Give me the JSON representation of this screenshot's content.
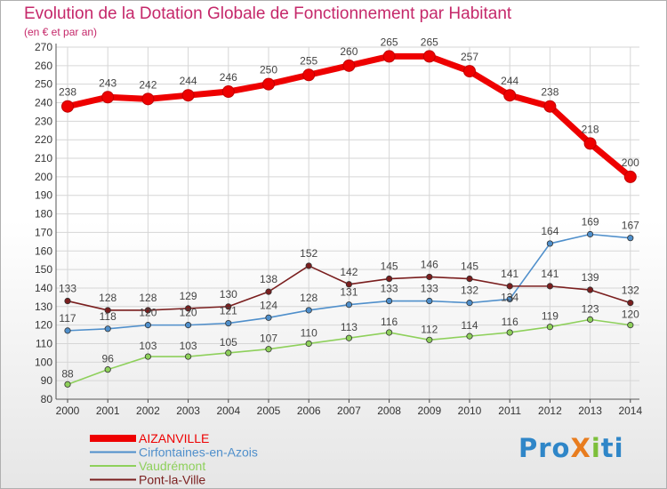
{
  "title": "Evolution de la Dotation Globale de Fonctionnement par Habitant",
  "subtitle": "(en € et par an)",
  "logo": {
    "text": "ProXiti"
  },
  "chart_data": {
    "type": "line",
    "title": "Evolution de la Dotation Globale de Fonctionnement par Habitant",
    "subtitle": "(en € et par an)",
    "xlabel": "",
    "ylabel": "",
    "ylim": [
      80,
      270
    ],
    "yticks": [
      80,
      90,
      100,
      110,
      120,
      130,
      140,
      150,
      160,
      170,
      180,
      190,
      200,
      210,
      220,
      230,
      240,
      250,
      260,
      270
    ],
    "grid": true,
    "legend_position": "bottom-left",
    "x": [
      "2000",
      "2001",
      "2002",
      "2003",
      "2004",
      "2005",
      "2006",
      "2007",
      "2008",
      "2009",
      "2010",
      "2011",
      "2012",
      "2013",
      "2014"
    ],
    "series": [
      {
        "name": "AIZANVILLE",
        "color": "#ee0000",
        "values": [
          238,
          243,
          242,
          244,
          246,
          250,
          255,
          260,
          265,
          265,
          257,
          244,
          238,
          218,
          200
        ]
      },
      {
        "name": "Cirfontaines-en-Azois",
        "color": "#4f8fcb",
        "values": [
          117,
          118,
          120,
          120,
          121,
          124,
          128,
          131,
          133,
          133,
          132,
          134,
          164,
          169,
          167
        ]
      },
      {
        "name": "Vaudrémont",
        "color": "#8ed05b",
        "values": [
          88,
          96,
          103,
          103,
          105,
          107,
          110,
          113,
          116,
          112,
          114,
          116,
          119,
          123,
          120
        ]
      },
      {
        "name": "Pont-la-Ville",
        "color": "#7a1e1e",
        "values": [
          133,
          128,
          128,
          129,
          130,
          138,
          152,
          142,
          145,
          146,
          145,
          141,
          141,
          139,
          132
        ]
      }
    ],
    "data_labels": [
      {
        "series": 0,
        "values": [
          "238",
          "243",
          "242",
          "244",
          "246",
          "250",
          "255",
          "260",
          "265",
          "265",
          "257",
          "244",
          "238",
          "218",
          "200"
        ]
      },
      {
        "series": 1,
        "values": [
          "117",
          "118",
          "120",
          "120",
          "121",
          "124",
          "128",
          "131",
          "133",
          "133",
          "132",
          "",
          "164",
          "169",
          "167"
        ]
      },
      {
        "series": 2,
        "values": [
          "88",
          "96",
          "103",
          "103",
          "105",
          "107",
          "110",
          "113",
          "116",
          "112",
          "114",
          "116",
          "119",
          "123",
          "120"
        ]
      },
      {
        "series": 3,
        "values": [
          "133",
          "128",
          "128",
          "129",
          "130",
          "138",
          "152",
          "142",
          "145",
          "146",
          "145",
          "141",
          "141",
          "139",
          "132"
        ]
      }
    ],
    "overlap_label": "134"
  }
}
